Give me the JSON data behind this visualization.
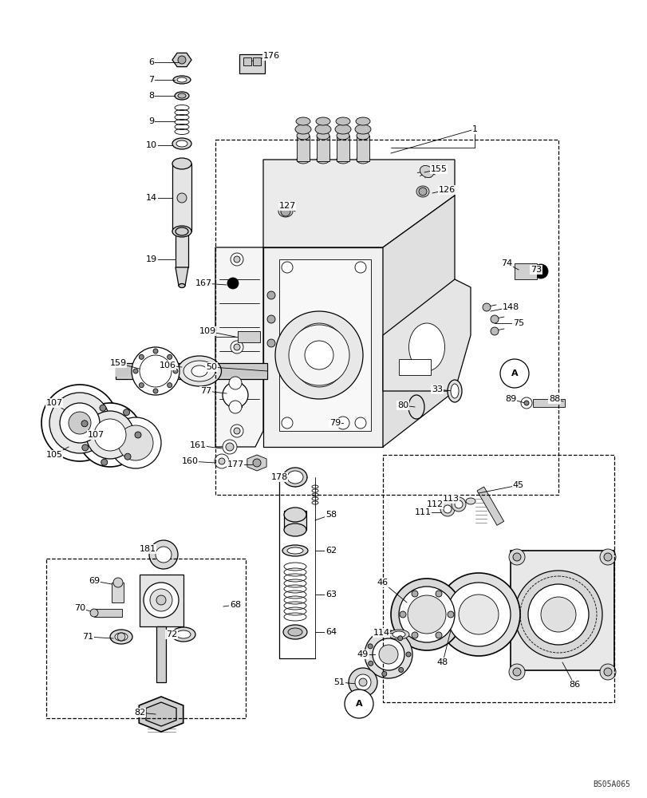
{
  "bg": "#ffffff",
  "fig_width": 8.12,
  "fig_height": 10.0,
  "dpi": 100,
  "image_code": "BS05A065",
  "lw_thin": 0.6,
  "lw_med": 0.9,
  "lw_thick": 1.2
}
